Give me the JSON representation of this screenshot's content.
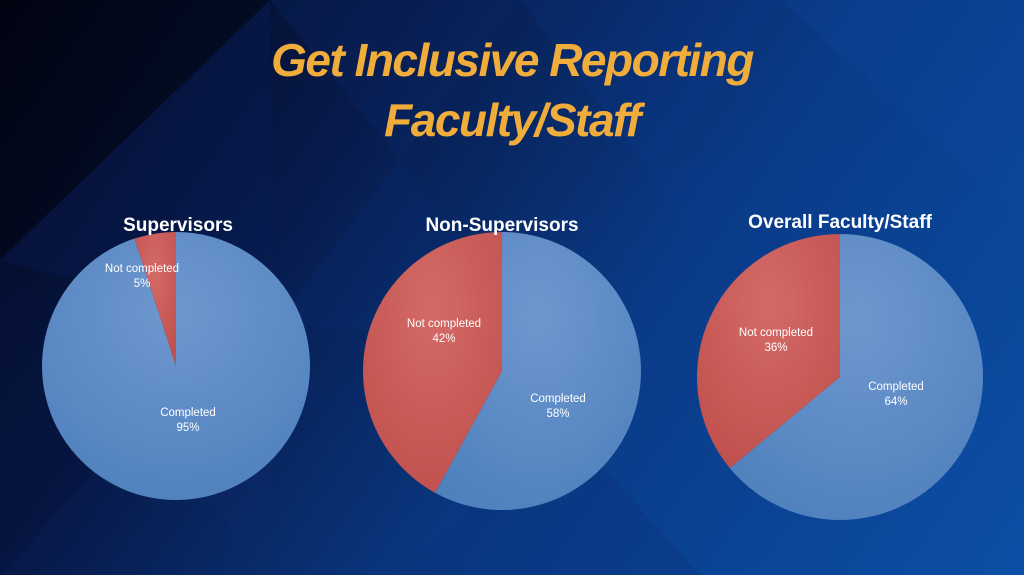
{
  "slide": {
    "title_line1": "Get Inclusive Reporting",
    "title_line2": "Faculty/Staff"
  },
  "colors": {
    "title": "#f0ad3c",
    "completed": "#4f81bd",
    "not_completed": "#c0504d"
  },
  "chart_data": [
    {
      "type": "pie",
      "title": "Supervisors",
      "slices": [
        {
          "category": "Completed",
          "label": "Completed",
          "value": 95,
          "value_label": "95%"
        },
        {
          "category": "Not completed",
          "label": "Not completed",
          "value": 5,
          "value_label": "5%"
        }
      ]
    },
    {
      "type": "pie",
      "title": "Non-Supervisors",
      "slices": [
        {
          "category": "Completed",
          "label": "Completed",
          "value": 58,
          "value_label": "58%"
        },
        {
          "category": "Not completed",
          "label": "Not completed",
          "value": 42,
          "value_label": "42%"
        }
      ]
    },
    {
      "type": "pie",
      "title": "Overall Faculty/Staff",
      "slices": [
        {
          "category": "Completed",
          "label": "Completed",
          "value": 64,
          "value_label": "64%"
        },
        {
          "category": "Not completed",
          "label": "Not completed",
          "value": 36,
          "value_label": "36%"
        }
      ]
    }
  ]
}
